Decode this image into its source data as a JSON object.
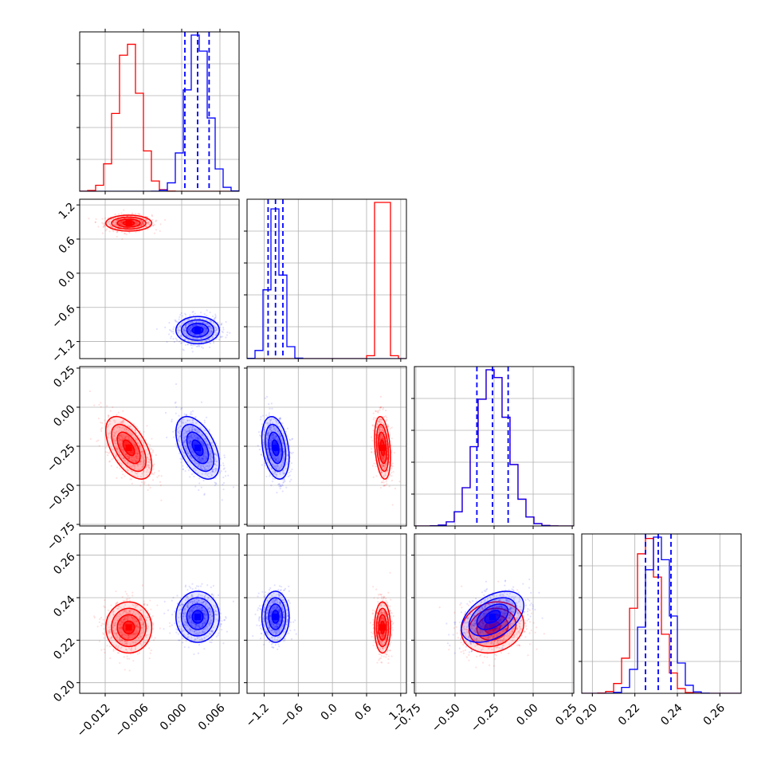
{
  "chart_data": {
    "type": "corner",
    "title": "",
    "grid": true,
    "params": [
      {
        "range": [
          -0.016,
          0.009
        ],
        "ticks": [
          -0.012,
          -0.006,
          0.0,
          0.006
        ],
        "tick_labels": [
          "−0.012",
          "−0.006",
          "0.000",
          "0.006"
        ]
      },
      {
        "range": [
          -1.5,
          1.3
        ],
        "ticks": [
          -1.2,
          -0.6,
          0.0,
          0.6,
          1.2
        ],
        "tick_labels": [
          "−1.2",
          "−0.6",
          "0.0",
          "0.6",
          "1.2"
        ]
      },
      {
        "range": [
          -0.76,
          0.26
        ],
        "ticks": [
          -0.75,
          -0.5,
          -0.25,
          0.0,
          0.25
        ],
        "tick_labels": [
          "−0.75",
          "−0.50",
          "−0.25",
          "0.00",
          "0.25"
        ]
      },
      {
        "range": [
          0.195,
          0.27
        ],
        "ticks": [
          0.2,
          0.22,
          0.24,
          0.26
        ],
        "tick_labels": [
          "0.20",
          "0.22",
          "0.24",
          "0.26"
        ]
      }
    ],
    "series": [
      {
        "color": "#ff0000",
        "mean": [
          -0.0083,
          0.88,
          -0.26,
          0.226
        ],
        "sd": [
          0.0018,
          0.07,
          0.1,
          0.006
        ],
        "rho": {
          "0-2": -0.55,
          "1-2": -0.3,
          "2-3": 0.15
        }
      },
      {
        "color": "#0000ff",
        "mean": [
          0.0025,
          -1.0,
          -0.26,
          0.231
        ],
        "sd": [
          0.0017,
          0.12,
          0.1,
          0.006
        ],
        "rho": {
          "0-2": -0.5,
          "1-2": -0.3,
          "2-3": 0.45
        }
      }
    ],
    "quantile_lines": {
      "color": "#0000ff",
      "values": [
        [
          0.0005,
          0.0025,
          0.0043
        ],
        [
          -1.13,
          -1.0,
          -0.87
        ],
        [
          -0.36,
          -0.26,
          -0.16
        ],
        [
          0.225,
          0.231,
          0.237
        ]
      ]
    }
  }
}
